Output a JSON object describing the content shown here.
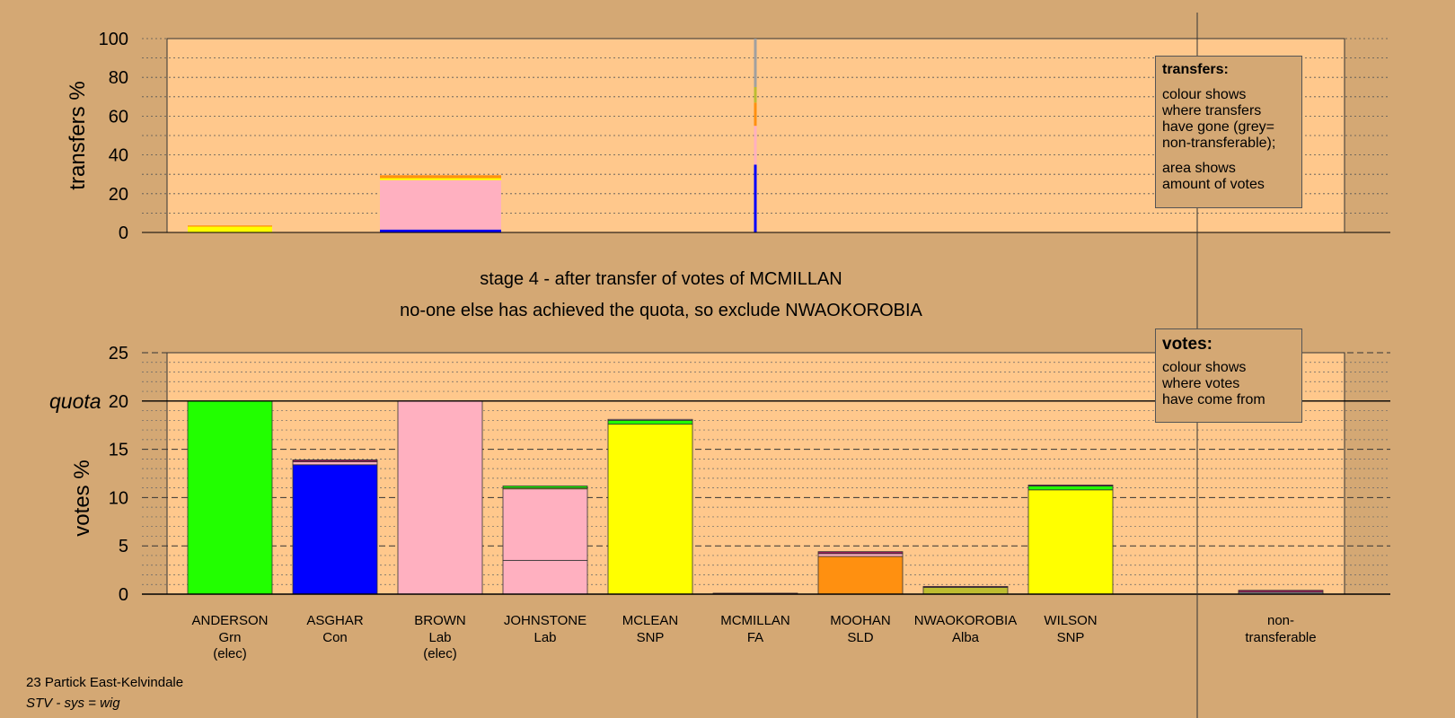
{
  "heading": {
    "stage": "stage 4 - after transfer of votes of MCMILLAN",
    "note": "no-one else has achieved the quota, so exclude NWAOKOROBIA"
  },
  "footer": {
    "ward": "23 Partick East-Kelvindale",
    "system": "STV - sys = wig"
  },
  "legend_transfers": {
    "title": "transfers:",
    "lines": [
      "colour shows",
      "where transfers",
      "have gone (grey=",
      "non-transferable);"
    ],
    "lines2": [
      "area shows",
      "amount of votes"
    ]
  },
  "legend_votes": {
    "title": "votes:",
    "lines": [
      "colour shows",
      "where votes",
      "have come from"
    ]
  },
  "colors": {
    "background": "#D4A874",
    "plot_bg": "#FFC88C",
    "Grn": "#22FF00",
    "Con": "#0000FF",
    "Lab": "#FFB0C0",
    "SNP": "#FFFF00",
    "SLD": "#FF9010",
    "Alba": "#BDBD30",
    "FA": "#9C1C5A",
    "nontransferable": "#A0A0A0"
  },
  "chart_data": [
    {
      "type": "bar",
      "stacked": true,
      "ylabel": "transfers %",
      "ylim": [
        0,
        100
      ],
      "yticks": [
        0,
        20,
        40,
        60,
        80,
        100
      ],
      "grid": true,
      "categories": [
        "ANDERSON",
        "ASGHAR",
        "BROWN",
        "JOHNSTONE",
        "MCLEAN",
        "MCMILLAN",
        "MOOHAN",
        "NWAOKOROBIA",
        "WILSON"
      ],
      "bars": [
        {
          "category": "ANDERSON",
          "segments": [
            {
              "color": "#FFFF00",
              "value": 3.0
            },
            {
              "color": "#FF9010",
              "value": 0.6
            }
          ]
        },
        {
          "category": "BROWN",
          "segments": [
            {
              "color": "#0000FF",
              "value": 1.5
            },
            {
              "color": "#FFB0C0",
              "value": 25.5
            },
            {
              "color": "#FFFF00",
              "value": 1.0
            },
            {
              "color": "#FF9010",
              "value": 1.5
            }
          ]
        },
        {
          "category": "MCMILLAN",
          "segments": [
            {
              "color": "#0000FF",
              "value": 35
            },
            {
              "color": "#FFB0C0",
              "value": 20
            },
            {
              "color": "#FF9010",
              "value": 12
            },
            {
              "color": "#BDBD30",
              "value": 8
            },
            {
              "color": "#A0A0A0",
              "value": 25
            }
          ]
        }
      ]
    },
    {
      "type": "bar",
      "stacked": true,
      "ylabel": "votes %",
      "quota_label": "quota",
      "quota": 20,
      "ylim": [
        0,
        25
      ],
      "yticks": [
        0,
        5,
        10,
        15,
        20,
        25
      ],
      "grid": true,
      "categories": [
        {
          "name": "ANDERSON",
          "party": "Grn",
          "note": "(elec)"
        },
        {
          "name": "ASGHAR",
          "party": "Con",
          "note": ""
        },
        {
          "name": "BROWN",
          "party": "Lab",
          "note": "(elec)"
        },
        {
          "name": "JOHNSTONE",
          "party": "Lab",
          "note": ""
        },
        {
          "name": "MCLEAN",
          "party": "SNP",
          "note": ""
        },
        {
          "name": "MCMILLAN",
          "party": "FA",
          "note": ""
        },
        {
          "name": "MOOHAN",
          "party": "SLD",
          "note": ""
        },
        {
          "name": "NWAOKOROBIA",
          "party": "Alba",
          "note": ""
        },
        {
          "name": "WILSON",
          "party": "SNP",
          "note": ""
        }
      ],
      "nontransferable_label": [
        "non-",
        "transferable"
      ],
      "bars": [
        {
          "category": "ANDERSON",
          "segments": [
            {
              "color": "#22FF00",
              "value": 20.0
            }
          ]
        },
        {
          "category": "ASGHAR",
          "segments": [
            {
              "color": "#0000FF",
              "value": 13.4
            },
            {
              "color": "#FFB0C0",
              "value": 0.3
            },
            {
              "color": "#9C1C5A",
              "value": 0.2
            }
          ]
        },
        {
          "category": "BROWN",
          "segments": [
            {
              "color": "#FFB0C0",
              "value": 20.0
            }
          ]
        },
        {
          "category": "JOHNSTONE",
          "segments": [
            {
              "color": "#FFB0C0",
              "value": 3.5
            },
            {
              "color": "#FFB0C0",
              "value": 7.4
            },
            {
              "color": "#FFFF00",
              "value": 0.1
            },
            {
              "color": "#22FF00",
              "value": 0.2
            }
          ]
        },
        {
          "category": "MCLEAN",
          "segments": [
            {
              "color": "#FFFF00",
              "value": 17.6
            },
            {
              "color": "#22FF00",
              "value": 0.4
            },
            {
              "color": "#FFB0C0",
              "value": 0.1
            }
          ]
        },
        {
          "category": "MCMILLAN",
          "segments": [
            {
              "color": "#9C1C5A",
              "value": 0.1
            }
          ]
        },
        {
          "category": "MOOHAN",
          "segments": [
            {
              "color": "#FF9010",
              "value": 3.9
            },
            {
              "color": "#FFB0C0",
              "value": 0.3
            },
            {
              "color": "#9C1C5A",
              "value": 0.2
            }
          ]
        },
        {
          "category": "NWAOKOROBIA",
          "segments": [
            {
              "color": "#BDBD30",
              "value": 0.7
            },
            {
              "color": "#9C1C5A",
              "value": 0.1
            }
          ]
        },
        {
          "category": "WILSON",
          "segments": [
            {
              "color": "#FFFF00",
              "value": 10.8
            },
            {
              "color": "#22FF00",
              "value": 0.4
            },
            {
              "color": "#9C1C5A",
              "value": 0.1
            }
          ]
        },
        {
          "category": "non-transferable",
          "segments": [
            {
              "color": "#A0A0A0",
              "value": 0.2
            },
            {
              "color": "#9C1C5A",
              "value": 0.2
            }
          ]
        }
      ]
    }
  ]
}
